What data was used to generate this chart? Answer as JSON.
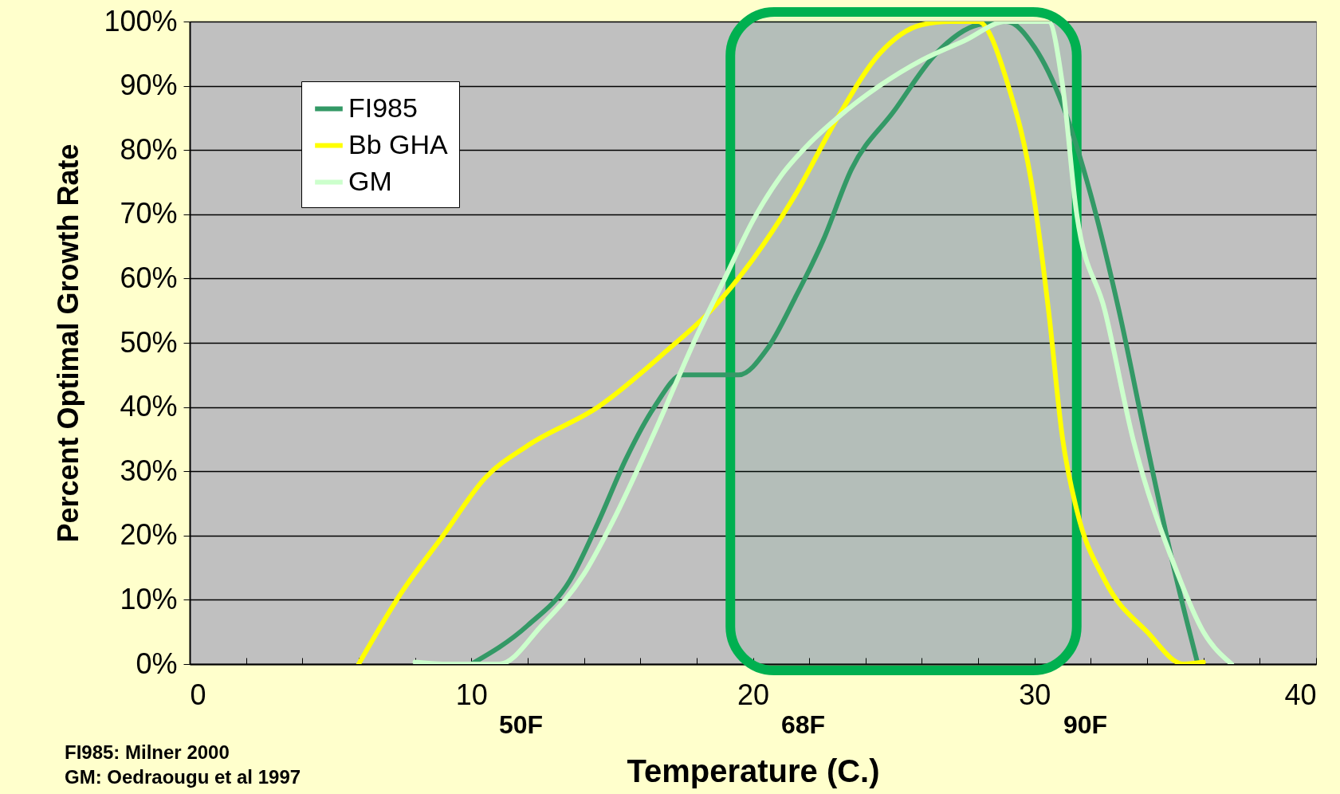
{
  "chart_data": {
    "type": "line",
    "xlabel": "Temperature (C.)",
    "ylabel": "Percent Optimal Growth Rate",
    "series": [
      {
        "name": "FI985",
        "color": "#339966",
        "x": [
          10,
          12,
          13.5,
          14.5,
          15.5,
          16.5,
          17.5,
          18.5,
          19.5,
          20.5,
          21.5,
          22.5,
          23.5,
          25,
          26.5,
          28,
          29,
          30,
          31,
          32,
          33,
          34,
          35,
          35.8
        ],
        "values": [
          0,
          6,
          13,
          22,
          32,
          40,
          45,
          45,
          45,
          49,
          57,
          66,
          77,
          86,
          95,
          99.5,
          100,
          96,
          87,
          73,
          55,
          34,
          14,
          0
        ]
      },
      {
        "name": "Bb GHA",
        "color": "#ffff00",
        "x": [
          6,
          7.5,
          9,
          10.5,
          12,
          14.5,
          17,
          18.5,
          20,
          21.5,
          23,
          24.5,
          26,
          27,
          28,
          29,
          30,
          30.5,
          31,
          31.5,
          32.5,
          34,
          35.3,
          36
        ],
        "values": [
          0,
          11,
          20,
          29,
          34,
          40,
          49,
          55,
          63,
          73,
          85,
          95,
          99.5,
          100,
          100,
          91,
          72,
          55,
          35,
          24,
          13,
          5,
          0,
          0.3
        ]
      },
      {
        "name": "GM",
        "color": "#ccffcc",
        "x": [
          8,
          9,
          11,
          12.5,
          14,
          15,
          16.5,
          18,
          19,
          20,
          21,
          22,
          23,
          24.5,
          26,
          27.5,
          29,
          30.5,
          31,
          31.5,
          32.5,
          33.5,
          35,
          36,
          37
        ],
        "values": [
          0.3,
          0,
          0,
          6,
          14,
          22,
          36,
          51,
          60,
          69,
          76,
          81,
          85,
          90,
          94,
          97,
          100,
          100,
          90,
          70,
          55,
          35,
          15,
          5,
          0
        ]
      }
    ],
    "xlim": [
      0,
      40
    ],
    "ylim": [
      0,
      100
    ],
    "xticks": [
      0,
      {
        "value": 2,
        "label": null
      },
      {
        "value": 4,
        "label": null
      },
      {
        "value": 6,
        "label": null
      },
      {
        "value": 8,
        "label": null
      },
      10,
      {
        "value": 12,
        "label": null
      },
      {
        "value": 14,
        "label": null
      },
      {
        "value": 16,
        "label": null
      },
      {
        "value": 18,
        "label": null
      },
      20,
      {
        "value": 22,
        "label": null
      },
      {
        "value": 24,
        "label": null
      },
      {
        "value": 26,
        "label": null
      },
      {
        "value": 28,
        "label": null
      },
      30,
      {
        "value": 32,
        "label": null
      },
      {
        "value": 34,
        "label": null
      },
      {
        "value": 36,
        "label": null
      },
      {
        "value": 38,
        "label": null
      },
      40
    ],
    "yticks": [
      {
        "value": 0,
        "label": "0%"
      },
      {
        "value": 10,
        "label": "10%"
      },
      {
        "value": 20,
        "label": "20%"
      },
      {
        "value": 30,
        "label": "30%"
      },
      {
        "value": 40,
        "label": "40%"
      },
      {
        "value": 50,
        "label": "50%"
      },
      {
        "value": 60,
        "label": "60%"
      },
      {
        "value": 70,
        "label": "70%"
      },
      {
        "value": 80,
        "label": "80%"
      },
      {
        "value": 90,
        "label": "90%"
      },
      {
        "value": 100,
        "label": "100%"
      }
    ],
    "grid": "y",
    "legend": "top left",
    "bands": [
      {
        "axis": "x",
        "from": 19.2,
        "to": 31.5,
        "color": "#00b050"
      }
    ],
    "annotations": [
      "50F",
      "68F",
      "90F",
      "FI985: Milner 2000",
      "GM: Oedraougu et al 1997"
    ]
  }
}
